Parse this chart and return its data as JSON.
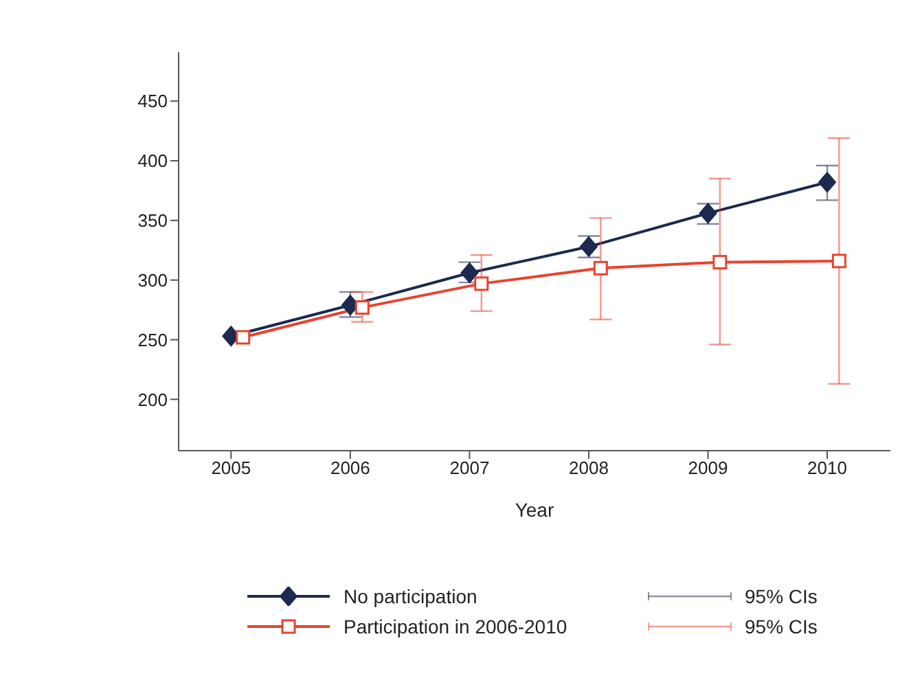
{
  "chart_data": {
    "type": "line",
    "xlabel": "Year",
    "xlim": [
      2004.56,
      2010.53
    ],
    "xticks": [
      2005,
      2006,
      2007,
      2008,
      2009,
      2010
    ],
    "ylim": [
      157,
      491
    ],
    "yticks": [
      200,
      250,
      300,
      350,
      400,
      450
    ],
    "legend": "bottom",
    "line_style": "solid",
    "annotations": [
      "95% CIs",
      "95% CIs"
    ],
    "series": [
      {
        "name": "No participation",
        "color": "#1b2a4e",
        "marker": "diamond",
        "x": [
          2005,
          2006,
          2007,
          2008,
          2009,
          2010
        ],
        "values": [
          253,
          279,
          306,
          328,
          356,
          382
        ],
        "errors": [
          null,
          [
            269,
            290
          ],
          [
            298,
            315
          ],
          [
            319,
            337
          ],
          [
            347,
            364
          ],
          [
            367,
            396
          ]
        ]
      },
      {
        "name": "Participation in 2006-2010",
        "color": "#e8432e",
        "marker": "square",
        "x": [
          2005.1,
          2006.1,
          2007.1,
          2008.1,
          2009.1,
          2010.1
        ],
        "values": [
          252,
          277,
          297,
          310,
          315,
          316
        ],
        "errors": [
          null,
          [
            265,
            290
          ],
          [
            274,
            321
          ],
          [
            267,
            352
          ],
          [
            246,
            385
          ],
          [
            213,
            419
          ]
        ]
      }
    ]
  }
}
